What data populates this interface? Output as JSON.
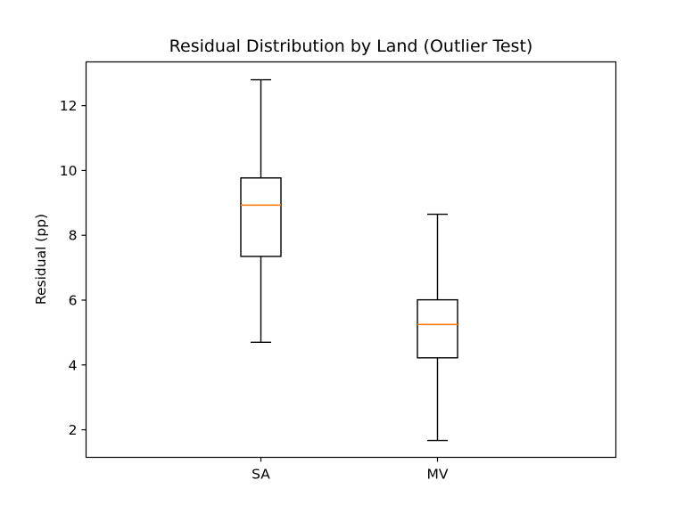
{
  "chart_data": {
    "type": "box",
    "title": "Residual Distribution by Land (Outlier Test)",
    "xlabel": "",
    "ylabel": "Residual (pp)",
    "categories": [
      "SA",
      "MV"
    ],
    "boxes": [
      {
        "category": "SA",
        "whisker_low": 4.7,
        "q1": 7.35,
        "median": 8.93,
        "q3": 9.77,
        "whisker_high": 12.8
      },
      {
        "category": "MV",
        "whisker_low": 1.67,
        "q1": 4.22,
        "median": 5.25,
        "q3": 6.01,
        "whisker_high": 8.65
      }
    ],
    "ylim": [
      1.15,
      13.35
    ],
    "yticks": [
      2,
      4,
      6,
      8,
      10,
      12
    ],
    "grid": false,
    "colors": {
      "box": "#000000",
      "median": "#ff7f0e"
    }
  }
}
